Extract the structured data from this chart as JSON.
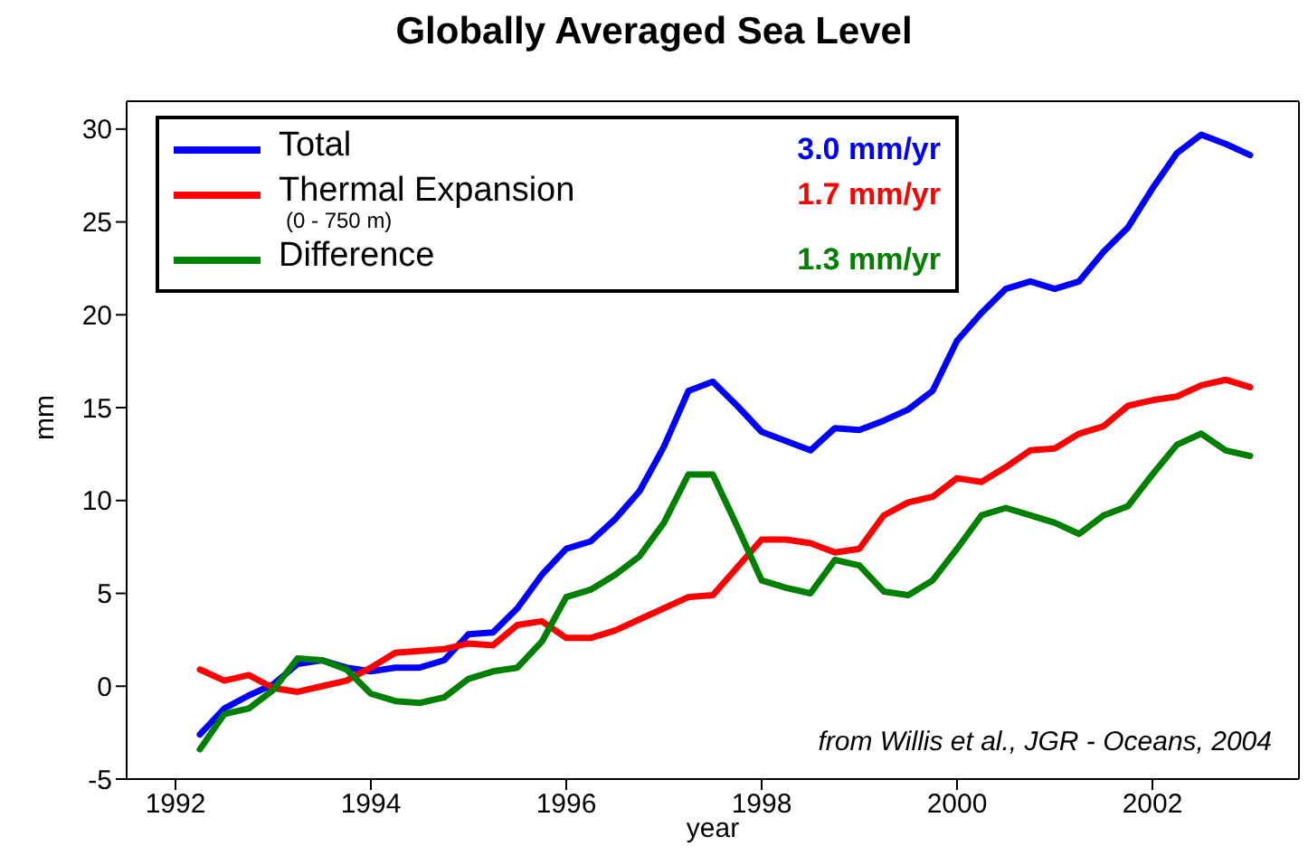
{
  "chart_data": {
    "type": "line",
    "title": "Globally Averaged Sea Level",
    "xlabel": "year",
    "ylabel": "mm",
    "x": [
      1992.25,
      1992.5,
      1992.75,
      1993,
      1993.25,
      1993.5,
      1993.75,
      1994,
      1994.25,
      1994.5,
      1994.75,
      1995,
      1995.25,
      1995.5,
      1995.75,
      1996,
      1996.25,
      1996.5,
      1996.75,
      1997,
      1997.25,
      1997.5,
      1997.75,
      1998,
      1998.25,
      1998.5,
      1998.75,
      1999,
      1999.25,
      1999.5,
      1999.75,
      2000,
      2000.25,
      2000.5,
      2000.75,
      2001,
      2001.25,
      2001.5,
      2001.75,
      2002,
      2002.25,
      2002.5,
      2002.75,
      2003
    ],
    "series": [
      {
        "name": "Total",
        "color": "#0000ff",
        "values": [
          -2.6,
          -1.2,
          -0.5,
          0.1,
          1.2,
          1.4,
          1.0,
          0.8,
          1.0,
          1.0,
          1.4,
          2.8,
          2.9,
          4.2,
          6.0,
          7.4,
          7.8,
          9.0,
          10.5,
          12.9,
          15.9,
          16.4,
          15.1,
          13.7,
          13.2,
          12.7,
          13.9,
          13.8,
          14.3,
          14.9,
          15.9,
          18.6,
          20.1,
          21.4,
          21.8,
          21.4,
          21.8,
          23.4,
          24.7,
          26.8,
          28.7,
          29.7,
          29.2,
          28.6
        ]
      },
      {
        "name": "Thermal Expansion",
        "color": "#ff0000",
        "values": [
          0.9,
          0.3,
          0.6,
          -0.1,
          -0.3,
          0.0,
          0.3,
          1.0,
          1.8,
          1.9,
          2.0,
          2.3,
          2.2,
          3.3,
          3.5,
          2.6,
          2.6,
          3.0,
          3.6,
          4.2,
          4.8,
          4.9,
          6.4,
          7.9,
          7.9,
          7.7,
          7.2,
          7.4,
          9.2,
          9.9,
          10.2,
          11.2,
          11.0,
          11.8,
          12.7,
          12.8,
          13.6,
          14.0,
          15.1,
          15.4,
          15.6,
          16.2,
          16.5,
          16.1
        ]
      },
      {
        "name": "Difference",
        "color": "#008000",
        "values": [
          -3.4,
          -1.5,
          -1.2,
          -0.2,
          1.5,
          1.4,
          0.9,
          -0.4,
          -0.8,
          -0.9,
          -0.6,
          0.4,
          0.8,
          1.0,
          2.4,
          4.8,
          5.2,
          6.0,
          7.0,
          8.8,
          11.4,
          11.4,
          8.6,
          5.7,
          5.3,
          5.0,
          6.8,
          6.5,
          5.1,
          4.9,
          5.7,
          7.4,
          9.2,
          9.6,
          9.2,
          8.8,
          8.2,
          9.2,
          9.7,
          11.4,
          13.0,
          13.6,
          12.7,
          12.4
        ]
      }
    ],
    "xlim": [
      1991.5,
      2003.5
    ],
    "xticks": [
      1992,
      1994,
      1996,
      1998,
      2000,
      2002
    ],
    "ylim": [
      -5,
      31.5
    ],
    "yticks": [
      -5,
      0,
      5,
      10,
      15,
      20,
      25,
      30
    ],
    "legend": "top left",
    "annotations": [
      "(0 - 750 m)",
      "3.0 mm/yr",
      "1.7 mm/yr",
      "1.3 mm/yr",
      "from Willis et al., JGR - Oceans, 2004"
    ]
  }
}
